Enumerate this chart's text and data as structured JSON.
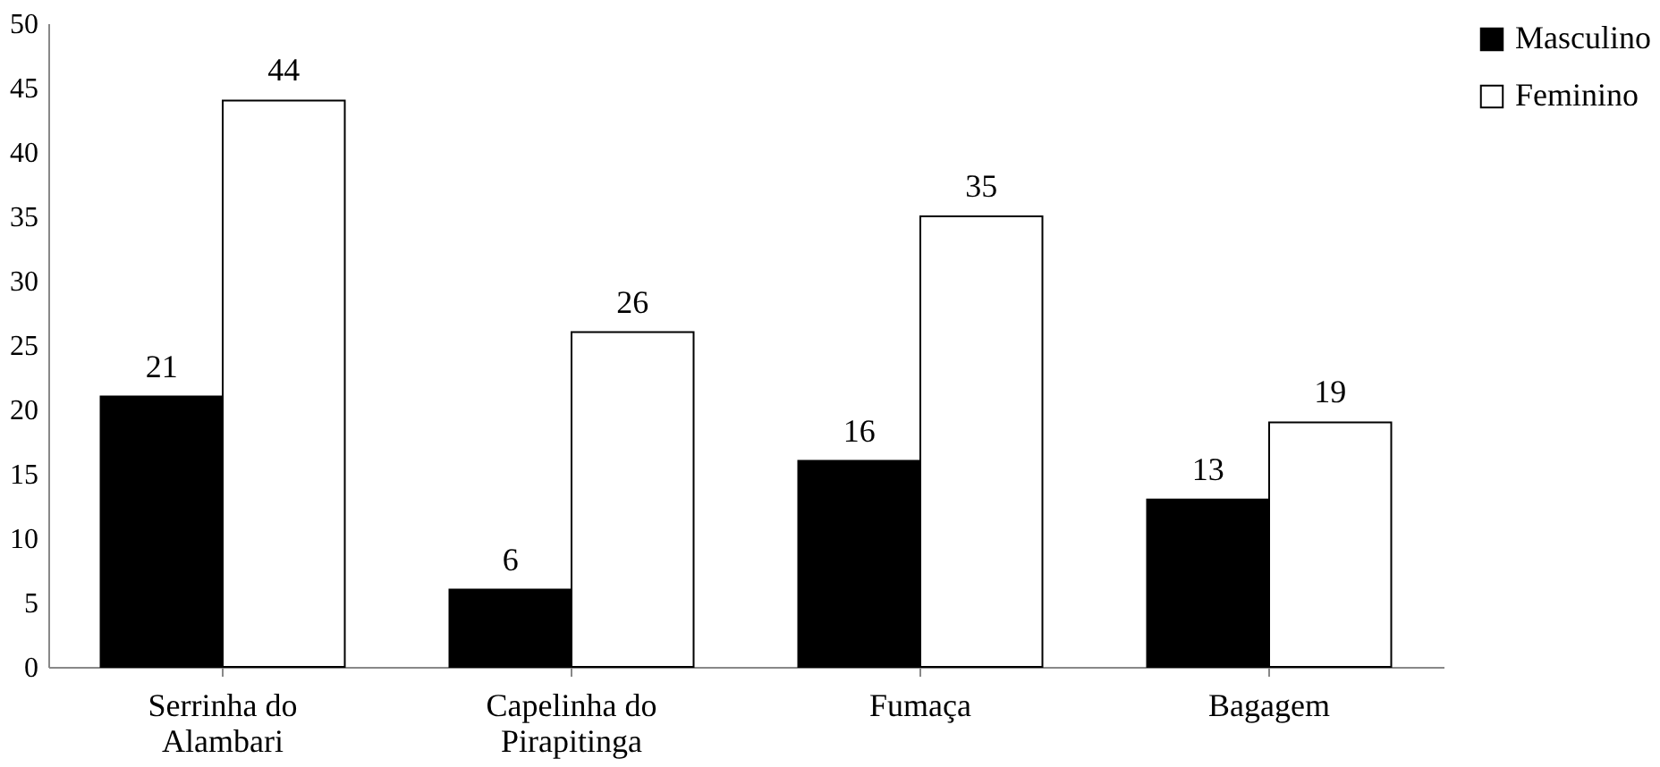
{
  "chart_data": {
    "type": "bar",
    "categories": [
      "Serrinha do Alambari",
      "Capelinha do Pirapitinga",
      "Fumaça",
      "Bagagem"
    ],
    "series": [
      {
        "name": "Masculino",
        "color": "#000000",
        "values": [
          21,
          6,
          16,
          13
        ]
      },
      {
        "name": "Feminino",
        "color": "#ffffff",
        "values": [
          44,
          26,
          35,
          19
        ]
      }
    ],
    "ylim": [
      0,
      50
    ],
    "yticks": [
      0,
      5,
      10,
      15,
      20,
      25,
      30,
      35,
      40,
      45,
      50
    ],
    "grid": false,
    "legend": "right",
    "data_labels": true
  }
}
